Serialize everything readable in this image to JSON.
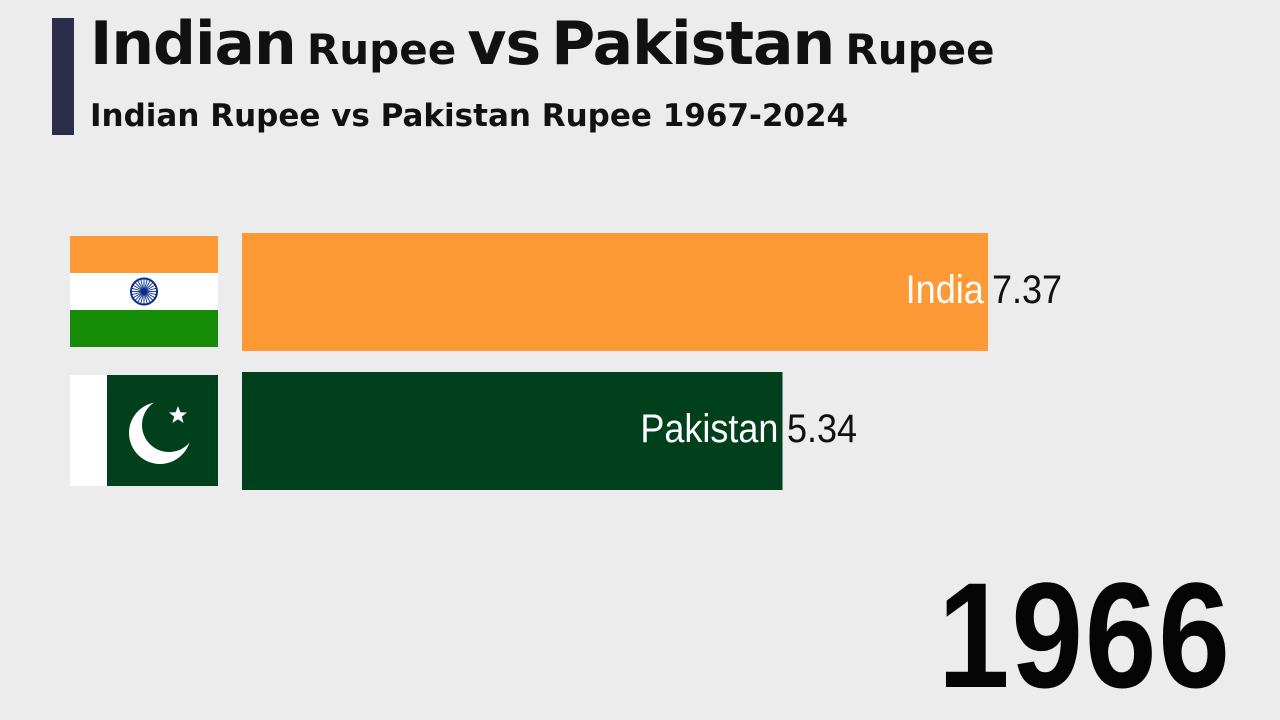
{
  "header": {
    "title_parts": [
      {
        "text": "Indian",
        "size": "big"
      },
      {
        "text": "Rupee",
        "size": "small"
      },
      {
        "text": "vs",
        "size": "big"
      },
      {
        "text": "Pakistan",
        "size": "big"
      },
      {
        "text": "Rupee",
        "size": "small"
      }
    ],
    "subtitle": "Indian Rupee vs Pakistan Rupee 1967-2024"
  },
  "chart_data": {
    "type": "bar",
    "orientation": "horizontal",
    "period_label": "1966",
    "categories": [
      "India",
      "Pakistan"
    ],
    "values": [
      7.37,
      5.34
    ],
    "value_labels": [
      "7.37",
      "5.34"
    ],
    "bar_colors": [
      "#fd9a35",
      "#01401c"
    ],
    "flags": [
      "india-flag-icon",
      "pakistan-flag-icon"
    ],
    "xlim": [
      0,
      7.37
    ],
    "grid": false,
    "legend": "none"
  },
  "colors": {
    "background": "#ececec",
    "title_accent": "#2b2d4b",
    "india_saffron": "#fd9a35",
    "india_green": "#168b08",
    "chakra_blue": "#0a2f8a",
    "pakistan_green": "#01401c"
  }
}
